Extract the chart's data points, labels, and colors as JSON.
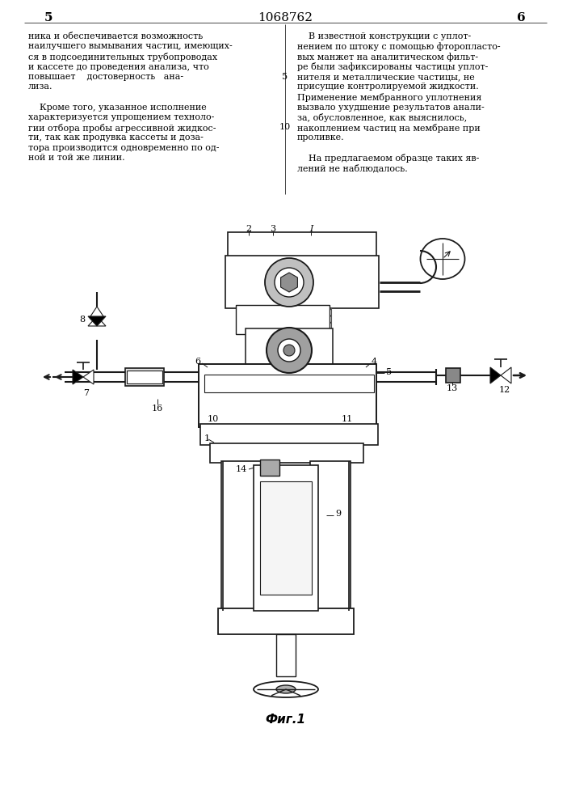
{
  "page_number_left": "5",
  "page_number_center": "1068762",
  "page_number_right": "6",
  "fig_label": "Фиг.1",
  "bg_color": "#ffffff",
  "text_color": "#000000",
  "drawing_color": "#1a1a1a",
  "hatch_color": "#555555",
  "left_text_lines": [
    "ника и обеспечивается возможность",
    "наилучшего вымывания частиц, имеющих-",
    "ся в подсоединительных трубопроводах",
    "и кассете до проведения анализа, что",
    "повышает    достоверность   ана-",
    "лиза.",
    "",
    "    Кроме того, указанное исполнение",
    "характеризуется упрощением техноло-",
    "гии отбора пробы агрессивной жидкос-",
    "ти, так как продувка кассеты и доза-",
    "тора производится одновременно по од-",
    "ной и той же линии."
  ],
  "right_text_lines": [
    "    В известной конструкции с уплот-",
    "нением по штоку с помощью фторопласто-",
    "вых манжет на аналитическом фильт-",
    "ре были зафиксированы частицы уплот-",
    "нителя и металлические частицы, не",
    "присущие контролируемой жидкости.",
    "Применение мембранного уплотнения",
    "вызвало ухудшение результатов анали-",
    "за, обусловленное, как выяснилось,",
    "накоплением частиц на мембране при",
    "проливке.",
    "",
    "    На предлагаемом образце таких яв-",
    "лений не наблюдалось."
  ]
}
